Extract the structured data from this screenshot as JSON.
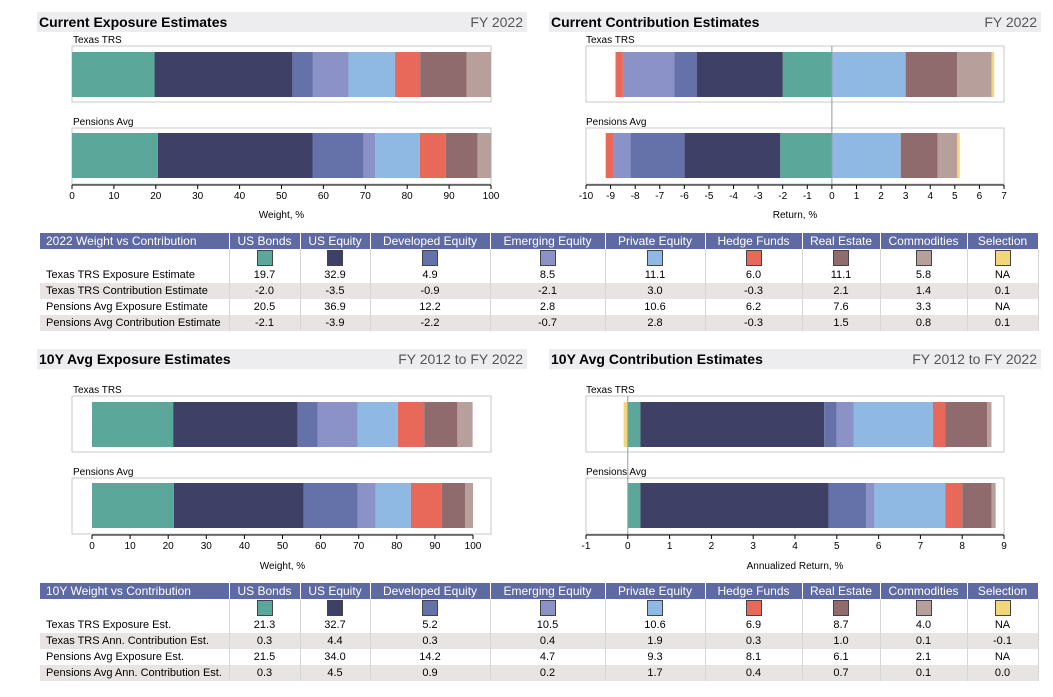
{
  "colors": {
    "us_bonds": "#5ba89a",
    "us_equity": "#3e4165",
    "developed_equity": "#6571a9",
    "emerging_equity": "#8b92c8",
    "private_equity": "#8fb9e3",
    "hedge_funds": "#e8695a",
    "real_estate": "#8f6b6e",
    "commodities": "#b7a09c",
    "selection": "#f2d67a"
  },
  "sections": {
    "current_exposure": {
      "title": "Current Exposure Estimates",
      "period": "FY 2022"
    },
    "current_contribution": {
      "title": "Current Contribution Estimates",
      "period": "FY 2022"
    },
    "avg_exposure": {
      "title": "10Y Avg Exposure Estimates",
      "period": "FY 2012 to FY 2022"
    },
    "avg_contribution": {
      "title": "10Y Avg Contribution Estimates",
      "period": "FY 2012 to FY 2022"
    }
  },
  "chart_data": [
    {
      "type": "bar",
      "stacked": true,
      "orientation": "horizontal",
      "title": "Current Exposure Estimates",
      "xlabel": "Weight, %",
      "xlim": [
        0,
        100
      ],
      "xticks": [
        "0",
        "10",
        "20",
        "30",
        "40",
        "50",
        "60",
        "70",
        "80",
        "90",
        "100"
      ],
      "categories": [
        "Texas TRS",
        "Pensions Avg"
      ],
      "series": [
        {
          "name": "US Bonds",
          "values": [
            19.7,
            20.5
          ]
        },
        {
          "name": "US Equity",
          "values": [
            32.9,
            36.9
          ]
        },
        {
          "name": "Developed Equity",
          "values": [
            4.9,
            12.2
          ]
        },
        {
          "name": "Emerging Equity",
          "values": [
            8.5,
            2.8
          ]
        },
        {
          "name": "Private Equity",
          "values": [
            11.1,
            10.6
          ]
        },
        {
          "name": "Hedge Funds",
          "values": [
            6.0,
            6.2
          ]
        },
        {
          "name": "Real Estate",
          "values": [
            11.1,
            7.6
          ]
        },
        {
          "name": "Commodities",
          "values": [
            5.8,
            3.3
          ]
        }
      ]
    },
    {
      "type": "bar",
      "stacked": true,
      "orientation": "horizontal",
      "title": "Current Contribution Estimates",
      "xlabel": "Return, %",
      "xlim": [
        -10,
        7
      ],
      "xticks": [
        "-10",
        "-9",
        "-8",
        "-7",
        "-6",
        "-5",
        "-4",
        "-3",
        "-2",
        "-1",
        "0",
        "1",
        "2",
        "3",
        "4",
        "5",
        "6",
        "7"
      ],
      "categories": [
        "Texas TRS",
        "Pensions Avg"
      ],
      "series": [
        {
          "name": "US Bonds",
          "values": [
            -2.0,
            -2.1
          ]
        },
        {
          "name": "US Equity",
          "values": [
            -3.5,
            -3.9
          ]
        },
        {
          "name": "Developed Equity",
          "values": [
            -0.9,
            -2.2
          ]
        },
        {
          "name": "Emerging Equity",
          "values": [
            -2.1,
            -0.7
          ]
        },
        {
          "name": "Private Equity",
          "values": [
            3.0,
            2.8
          ]
        },
        {
          "name": "Hedge Funds",
          "values": [
            -0.3,
            -0.3
          ]
        },
        {
          "name": "Real Estate",
          "values": [
            2.1,
            1.5
          ]
        },
        {
          "name": "Commodities",
          "values": [
            1.4,
            0.8
          ]
        },
        {
          "name": "Selection",
          "values": [
            0.1,
            0.1
          ]
        }
      ]
    },
    {
      "type": "bar",
      "stacked": true,
      "orientation": "horizontal",
      "title": "10Y Avg Exposure Estimates",
      "xlabel": "Weight, %",
      "xlim": [
        0,
        100
      ],
      "xticks": [
        "0",
        "10",
        "20",
        "30",
        "40",
        "50",
        "60",
        "70",
        "80",
        "90",
        "100"
      ],
      "categories": [
        "Texas TRS",
        "Pensions Avg"
      ],
      "series": [
        {
          "name": "US Bonds",
          "values": [
            21.3,
            21.5
          ]
        },
        {
          "name": "US Equity",
          "values": [
            32.7,
            34.0
          ]
        },
        {
          "name": "Developed Equity",
          "values": [
            5.2,
            14.2
          ]
        },
        {
          "name": "Emerging Equity",
          "values": [
            10.5,
            4.7
          ]
        },
        {
          "name": "Private Equity",
          "values": [
            10.6,
            9.3
          ]
        },
        {
          "name": "Hedge Funds",
          "values": [
            6.9,
            8.1
          ]
        },
        {
          "name": "Real Estate",
          "values": [
            8.7,
            6.1
          ]
        },
        {
          "name": "Commodities",
          "values": [
            4.0,
            2.1
          ]
        }
      ]
    },
    {
      "type": "bar",
      "stacked": true,
      "orientation": "horizontal",
      "title": "10Y Avg Contribution Estimates",
      "xlabel": "Annualized Return, %",
      "xlim": [
        -1,
        9
      ],
      "xticks": [
        "-1",
        "0",
        "1",
        "2",
        "3",
        "4",
        "5",
        "6",
        "7",
        "8",
        "9"
      ],
      "categories": [
        "Texas TRS",
        "Pensions Avg"
      ],
      "series": [
        {
          "name": "US Bonds",
          "values": [
            0.3,
            0.3
          ]
        },
        {
          "name": "US Equity",
          "values": [
            4.4,
            4.5
          ]
        },
        {
          "name": "Developed Equity",
          "values": [
            0.3,
            0.9
          ]
        },
        {
          "name": "Emerging Equity",
          "values": [
            0.4,
            0.2
          ]
        },
        {
          "name": "Private Equity",
          "values": [
            1.9,
            1.7
          ]
        },
        {
          "name": "Hedge Funds",
          "values": [
            0.3,
            0.4
          ]
        },
        {
          "name": "Real Estate",
          "values": [
            1.0,
            0.7
          ]
        },
        {
          "name": "Commodities",
          "values": [
            0.1,
            0.1
          ]
        },
        {
          "name": "Selection",
          "values": [
            -0.1,
            0.0
          ]
        }
      ]
    }
  ],
  "tables": {
    "current": {
      "header": [
        "2022 Weight vs Contribution",
        "US Bonds",
        "US Equity",
        "Developed Equity",
        "Emerging Equity",
        "Private Equity",
        "Hedge Funds",
        "Real Estate",
        "Commodities",
        "Selection"
      ],
      "rows": [
        [
          "Texas TRS Exposure Estimate",
          "19.7",
          "32.9",
          "4.9",
          "8.5",
          "11.1",
          "6.0",
          "11.1",
          "5.8",
          "NA"
        ],
        [
          "Texas TRS Contribution Estimate",
          "-2.0",
          "-3.5",
          "-0.9",
          "-2.1",
          "3.0",
          "-0.3",
          "2.1",
          "1.4",
          "0.1"
        ],
        [
          "Pensions Avg Exposure Estimate",
          "20.5",
          "36.9",
          "12.2",
          "2.8",
          "10.6",
          "6.2",
          "7.6",
          "3.3",
          "NA"
        ],
        [
          "Pensions Avg Contribution Estimate",
          "-2.1",
          "-3.9",
          "-2.2",
          "-0.7",
          "2.8",
          "-0.3",
          "1.5",
          "0.8",
          "0.1"
        ]
      ]
    },
    "avg": {
      "header": [
        "10Y Weight vs Contribution",
        "US Bonds",
        "US Equity",
        "Developed Equity",
        "Emerging Equity",
        "Private Equity",
        "Hedge Funds",
        "Real Estate",
        "Commodities",
        "Selection"
      ],
      "rows": [
        [
          "Texas TRS Exposure Est.",
          "21.3",
          "32.7",
          "5.2",
          "10.5",
          "10.6",
          "6.9",
          "8.7",
          "4.0",
          "NA"
        ],
        [
          "Texas TRS Ann. Contribution Est.",
          "0.3",
          "4.4",
          "0.3",
          "0.4",
          "1.9",
          "0.3",
          "1.0",
          "0.1",
          "-0.1"
        ],
        [
          "Pensions Avg Exposure Est.",
          "21.5",
          "34.0",
          "14.2",
          "4.7",
          "9.3",
          "8.1",
          "6.1",
          "2.1",
          "NA"
        ],
        [
          "Pensions Avg Ann. Contribution Est.",
          "0.3",
          "4.5",
          "0.9",
          "0.2",
          "1.7",
          "0.4",
          "0.7",
          "0.1",
          "0.0"
        ]
      ]
    }
  }
}
